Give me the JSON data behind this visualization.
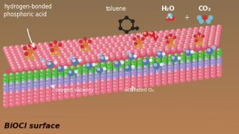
{
  "bg_color_top": "#a08060",
  "bg_color_bot": "#c8956a",
  "label_biocl": "BiOCl surface",
  "label_hbond": "hydrogen-bonded\nphosphoric acid",
  "label_toluene": "toluene",
  "label_h2o": "H₂O",
  "label_co2": "CO₂",
  "label_o2": "O₂",
  "label_ovacancy": "oxygen vacancy",
  "label_activated": "activated O₂",
  "pink": "#e8758a",
  "pink_dark": "#c85568",
  "pink_side": "#d06070",
  "green": "#55bb44",
  "green_side": "#3a8a30",
  "lavender": "#a090cc",
  "lavender_side": "#8070aa",
  "bi_color": "#5878a8",
  "cl_color": "#a0b8d0",
  "white_ball": "#e0e8f0",
  "dark_ball": "#304050",
  "orange": "#d87830",
  "red_mol": "#cc3030",
  "figsize": [
    3.36,
    1.89
  ],
  "dpi": 100
}
